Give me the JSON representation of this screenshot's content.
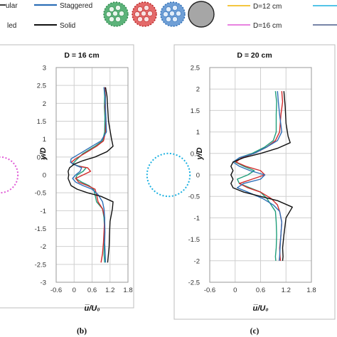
{
  "legend": {
    "left_entries": [
      {
        "label": "ular",
        "color": "#2a2a2a"
      },
      {
        "label": "Staggered",
        "color": "#2e6fb7"
      },
      {
        "label": "led",
        "color": "#2a2a2a"
      },
      {
        "label": "Solid",
        "color": "#111111"
      }
    ],
    "right_entries": [
      {
        "label": "D=12 cm",
        "color": "#f0b400"
      },
      {
        "label": "D=16 cm",
        "color": "#e05ad6"
      },
      {
        "label": "",
        "color": "#1ab0e0"
      },
      {
        "label": "",
        "color": "#4a5b8a"
      }
    ],
    "icons": [
      "green-dotted-circle-icon",
      "red-dotted-circle-icon",
      "blue-dotted-circle-icon",
      "grey-solid-circle-icon"
    ]
  },
  "chart_data": [
    {
      "id": "b",
      "type": "line",
      "title": "D = 16 cm",
      "xlabel": "u̅/U₀",
      "ylabel": "y/D",
      "caption": "(b)",
      "xlim": [
        -0.6,
        1.8
      ],
      "ylim": [
        -3,
        3
      ],
      "xticks": [
        "-0.6",
        "0",
        "0.6",
        "1.2",
        "1.8"
      ],
      "yticks": [
        "3",
        "2.5",
        "2",
        "1.5",
        "1",
        "0.5",
        "0",
        "-0.5",
        "-1",
        "-1.5",
        "-2",
        "-2.5",
        "-3"
      ],
      "grid": true,
      "cylinder": {
        "color": "#e05ad6",
        "radius_in_D": 0.5
      },
      "series": [
        {
          "color": "#1f9e7a",
          "x": [
            1.0,
            1.02,
            1.01,
            1.03,
            1.02,
            0.95,
            0.7,
            0.3,
            0.05,
            -0.05,
            0.15,
            0.4,
            0.3,
            0.1,
            0.05,
            0.25,
            0.5,
            0.65,
            0.7,
            0.75,
            0.95,
            1.0,
            1.02,
            1.01,
            1.0,
            1.02
          ],
          "y": [
            2.45,
            2.2,
            1.9,
            1.6,
            1.2,
            0.95,
            0.8,
            0.6,
            0.4,
            0.3,
            0.25,
            0.2,
            0.1,
            0.0,
            -0.1,
            -0.2,
            -0.3,
            -0.4,
            -0.55,
            -0.75,
            -0.95,
            -1.2,
            -1.6,
            -1.9,
            -2.2,
            -2.45
          ]
        },
        {
          "color": "#d22a2a",
          "x": [
            1.02,
            1.05,
            1.03,
            1.06,
            1.05,
            0.98,
            0.75,
            0.35,
            0.05,
            -0.1,
            0.1,
            0.45,
            0.55,
            0.3,
            0.05,
            0.15,
            0.45,
            0.7,
            0.75,
            0.8,
            0.95,
            1.02,
            1.0,
            0.98,
            0.95,
            0.9
          ],
          "y": [
            2.45,
            2.2,
            1.9,
            1.6,
            1.2,
            0.95,
            0.8,
            0.6,
            0.45,
            0.35,
            0.25,
            0.2,
            0.1,
            0.0,
            -0.1,
            -0.2,
            -0.3,
            -0.4,
            -0.55,
            -0.75,
            -0.95,
            -1.2,
            -1.6,
            -1.9,
            -2.2,
            -2.45
          ]
        },
        {
          "color": "#2e6fb7",
          "x": [
            1.0,
            1.04,
            1.05,
            1.06,
            1.08,
            0.9,
            0.6,
            0.2,
            -0.1,
            -0.12,
            0.1,
            0.25,
            0.2,
            0.05,
            -0.05,
            0.05,
            0.3,
            0.6,
            0.8,
            0.95,
            1.0,
            1.02,
            1.03,
            1.02,
            1.04,
            1.05
          ],
          "y": [
            2.45,
            2.2,
            1.9,
            1.6,
            1.2,
            0.95,
            0.8,
            0.6,
            0.45,
            0.35,
            0.25,
            0.2,
            0.1,
            0.0,
            -0.1,
            -0.2,
            -0.3,
            -0.4,
            -0.55,
            -0.75,
            -0.95,
            -1.2,
            -1.6,
            -1.9,
            -2.2,
            -2.45
          ]
        },
        {
          "color": "#111111",
          "x": [
            1.05,
            1.1,
            1.12,
            1.15,
            1.25,
            1.3,
            1.1,
            0.7,
            0.3,
            0.0,
            -0.15,
            -0.2,
            -0.18,
            -0.2,
            -0.15,
            -0.1,
            0.1,
            0.45,
            0.9,
            1.3,
            1.28,
            1.2,
            1.18,
            1.17,
            1.15,
            1.12
          ],
          "y": [
            2.45,
            2.2,
            1.9,
            1.5,
            1.0,
            0.8,
            0.65,
            0.5,
            0.4,
            0.3,
            0.2,
            0.1,
            0.0,
            -0.1,
            -0.2,
            -0.3,
            -0.4,
            -0.5,
            -0.6,
            -0.75,
            -0.95,
            -1.3,
            -1.7,
            -2.0,
            -2.2,
            -2.45
          ]
        }
      ]
    },
    {
      "id": "c",
      "type": "line",
      "title": "D = 20 cm",
      "xlabel": "u̅/U₀",
      "ylabel": "y/D",
      "caption": "(c)",
      "xlim": [
        -0.6,
        1.8
      ],
      "ylim": [
        -2.5,
        2.5
      ],
      "xticks": [
        "-0.6",
        "0",
        "0.6",
        "1.2",
        "1.8"
      ],
      "yticks": [
        "2.5",
        "2",
        "1.5",
        "1",
        "0.5",
        "0",
        "-0.5",
        "-1",
        "-1.5",
        "-2",
        "-2.5"
      ],
      "grid": true,
      "cylinder": {
        "color": "#1ab0e0",
        "radius_in_D": 0.5
      },
      "series": [
        {
          "color": "#1f9e7a",
          "x": [
            0.95,
            0.98,
            0.97,
            0.97,
            0.9,
            0.7,
            0.4,
            0.1,
            0.0,
            0.2,
            0.45,
            0.3,
            0.05,
            0.1,
            0.35,
            0.6,
            0.75,
            0.85,
            0.95,
            0.97,
            0.98,
            0.97,
            0.95,
            0.96
          ],
          "y": [
            1.95,
            1.7,
            1.4,
            1.0,
            0.8,
            0.65,
            0.5,
            0.4,
            0.3,
            0.2,
            0.1,
            0.0,
            -0.1,
            -0.2,
            -0.3,
            -0.4,
            -0.55,
            -0.7,
            -0.85,
            -1.1,
            -1.4,
            -1.7,
            -1.9,
            -2.0
          ]
        },
        {
          "color": "#d22a2a",
          "x": [
            1.1,
            1.12,
            1.08,
            1.05,
            0.95,
            0.75,
            0.45,
            0.15,
            0.02,
            0.25,
            0.6,
            0.7,
            0.4,
            0.1,
            0.3,
            0.6,
            0.85,
            1.0,
            1.05,
            1.1,
            1.08,
            1.05,
            1.06,
            1.07
          ],
          "y": [
            1.95,
            1.7,
            1.4,
            1.0,
            0.8,
            0.65,
            0.5,
            0.4,
            0.3,
            0.2,
            0.1,
            0.0,
            -0.1,
            -0.2,
            -0.3,
            -0.4,
            -0.55,
            -0.7,
            -0.85,
            -1.1,
            -1.4,
            -1.7,
            -1.9,
            -2.0
          ]
        },
        {
          "color": "#2e6fb7",
          "x": [
            1.0,
            1.02,
            1.05,
            1.1,
            1.0,
            0.75,
            0.45,
            0.1,
            -0.05,
            0.1,
            0.35,
            0.7,
            0.6,
            0.2,
            0.05,
            0.3,
            0.65,
            0.9,
            1.05,
            1.1,
            1.08,
            1.06,
            1.05,
            1.04
          ],
          "y": [
            1.95,
            1.7,
            1.4,
            1.0,
            0.8,
            0.65,
            0.5,
            0.4,
            0.3,
            0.2,
            0.1,
            0.0,
            -0.1,
            -0.2,
            -0.3,
            -0.4,
            -0.55,
            -0.7,
            -0.85,
            -1.1,
            -1.4,
            -1.7,
            -1.9,
            -2.0
          ]
        },
        {
          "color": "#111111",
          "x": [
            1.15,
            1.18,
            1.2,
            1.25,
            1.3,
            1.0,
            0.6,
            0.2,
            -0.05,
            -0.1,
            -0.05,
            -0.1,
            -0.05,
            -0.1,
            -0.05,
            0.2,
            0.6,
            1.0,
            1.35,
            1.2,
            1.15,
            1.12,
            1.13,
            1.12
          ],
          "y": [
            1.95,
            1.6,
            1.2,
            0.9,
            0.75,
            0.62,
            0.5,
            0.4,
            0.3,
            0.2,
            0.1,
            0.0,
            -0.1,
            -0.2,
            -0.3,
            -0.4,
            -0.5,
            -0.6,
            -0.75,
            -1.0,
            -1.4,
            -1.7,
            -1.9,
            -2.0
          ]
        }
      ]
    }
  ]
}
